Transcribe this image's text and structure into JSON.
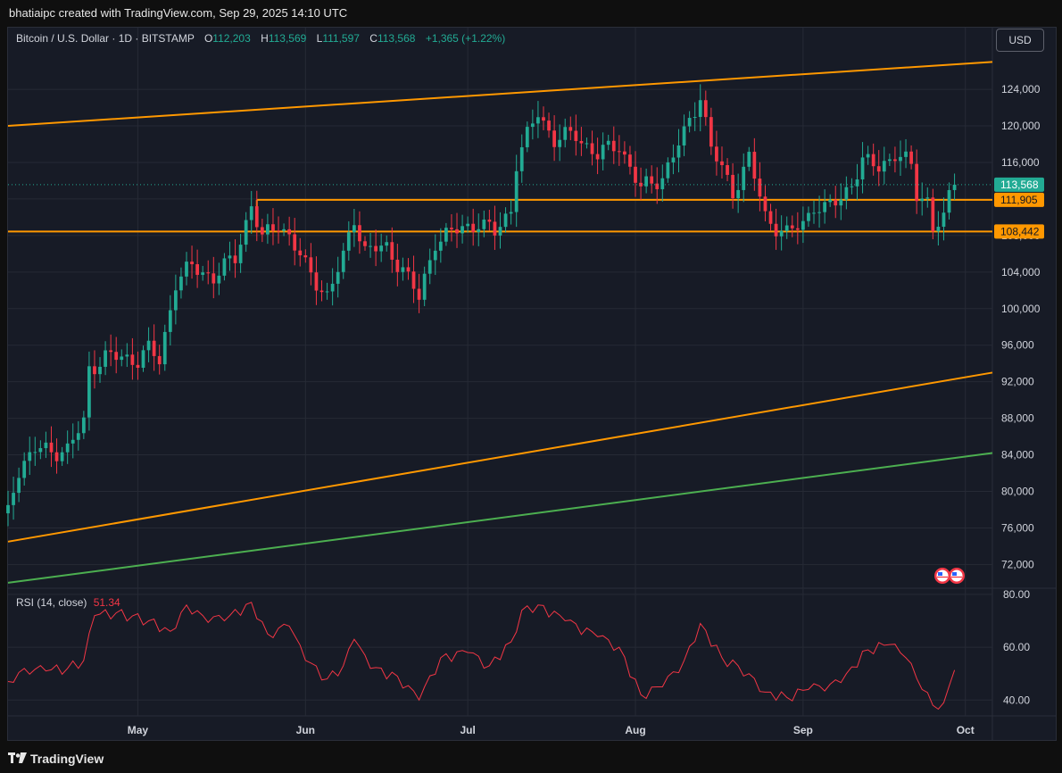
{
  "header": {
    "attribution": "bhatiaipc created with TradingView.com, Sep 29, 2025 14:10 UTC"
  },
  "legend": {
    "symbol": "Bitcoin / U.S. Dollar · 1D · BITSTAMP",
    "o_label": "O",
    "o_value": "112,203",
    "h_label": "H",
    "h_value": "113,569",
    "l_label": "L",
    "l_value": "111,597",
    "c_label": "C",
    "c_value": "113,568",
    "change": "+1,365 (+1.22%)"
  },
  "currency_button": "USD",
  "rsi_legend": {
    "label": "RSI (14, close)",
    "value": "51.34"
  },
  "footer": {
    "brand": "TradingView"
  },
  "colors": {
    "up": "#22ab94",
    "down": "#f23645",
    "level": "#ff9800",
    "trend_green": "#4caf50",
    "rsi": "#f23645",
    "bg": "#171b26",
    "grid": "#262a35"
  },
  "chart_data": {
    "type": "candlestick",
    "title": "Bitcoin / U.S. Dollar · 1D · BITSTAMP",
    "price_axis": {
      "ylim": [
        69500,
        128500
      ],
      "ticks": [
        72000,
        76000,
        80000,
        84000,
        88000,
        92000,
        96000,
        100000,
        104000,
        108000,
        112000,
        116000,
        120000,
        124000
      ],
      "tick_labels": [
        "72,000",
        "76,000",
        "80,000",
        "84,000",
        "88,000",
        "92,000",
        "96,000",
        "100,000",
        "104,000",
        "108,000",
        "112,000",
        "116,000",
        "120,000",
        "124,000"
      ]
    },
    "x_axis": {
      "start": "2025-04-07",
      "end": "2025-10-06",
      "ticks": [
        "2025-05-01",
        "2025-06-01",
        "2025-07-01",
        "2025-08-01",
        "2025-09-01",
        "2025-10-01"
      ],
      "tick_labels": [
        "May",
        "Jun",
        "Jul",
        "Aug",
        "Sep",
        "Oct"
      ]
    },
    "close_path": [
      [
        "2025-04-07",
        78500
      ],
      [
        "2025-04-09",
        82500
      ],
      [
        "2025-04-12",
        84500
      ],
      [
        "2025-04-18",
        84500
      ],
      [
        "2025-04-21",
        87500
      ],
      [
        "2025-04-22",
        93500
      ],
      [
        "2025-04-25",
        94700
      ],
      [
        "2025-05-01",
        94500
      ],
      [
        "2025-05-03",
        95500
      ],
      [
        "2025-05-05",
        94200
      ],
      [
        "2025-05-08",
        103000
      ],
      [
        "2025-05-11",
        104500
      ],
      [
        "2025-05-15",
        103500
      ],
      [
        "2025-05-19",
        105500
      ],
      [
        "2025-05-22",
        111500
      ],
      [
        "2025-05-24",
        107500
      ],
      [
        "2025-05-27",
        109400
      ],
      [
        "2025-05-29",
        108000
      ],
      [
        "2025-06-01",
        104500
      ],
      [
        "2025-06-05",
        101500
      ],
      [
        "2025-06-08",
        105500
      ],
      [
        "2025-06-10",
        110000
      ],
      [
        "2025-06-12",
        106500
      ],
      [
        "2025-06-16",
        106500
      ],
      [
        "2025-06-19",
        104500
      ],
      [
        "2025-06-22",
        101000
      ],
      [
        "2025-06-25",
        107500
      ],
      [
        "2025-06-29",
        108500
      ],
      [
        "2025-07-03",
        109500
      ],
      [
        "2025-07-06",
        108200
      ],
      [
        "2025-07-09",
        111000
      ],
      [
        "2025-07-10",
        116000
      ],
      [
        "2025-07-14",
        121500
      ],
      [
        "2025-07-17",
        118500
      ],
      [
        "2025-07-21",
        119000
      ],
      [
        "2025-07-25",
        116800
      ],
      [
        "2025-07-29",
        118000
      ],
      [
        "2025-08-02",
        113000
      ],
      [
        "2025-08-06",
        114500
      ],
      [
        "2025-08-10",
        119000
      ],
      [
        "2025-08-13",
        123500
      ],
      [
        "2025-08-15",
        117500
      ],
      [
        "2025-08-19",
        112800
      ],
      [
        "2025-08-22",
        116500
      ],
      [
        "2025-08-25",
        110000
      ],
      [
        "2025-08-29",
        108200
      ],
      [
        "2025-09-01",
        109200
      ],
      [
        "2025-09-03",
        111500
      ],
      [
        "2025-09-05",
        110800
      ],
      [
        "2025-09-08",
        112000
      ],
      [
        "2025-09-12",
        116000
      ],
      [
        "2025-09-15",
        115500
      ],
      [
        "2025-09-18",
        117000
      ],
      [
        "2025-09-21",
        115500
      ],
      [
        "2025-09-22",
        112500
      ],
      [
        "2025-09-24",
        112000
      ],
      [
        "2025-09-25",
        109000
      ],
      [
        "2025-09-27",
        109500
      ],
      [
        "2025-09-28",
        112200
      ],
      [
        "2025-09-29",
        113568
      ]
    ],
    "horizontal_levels": [
      {
        "value": 111905,
        "label": "111,905",
        "from": "2025-05-23"
      },
      {
        "value": 108442,
        "label": "108,442",
        "from": "2025-04-07"
      }
    ],
    "last_price": {
      "value": 113568,
      "label": "113,568"
    },
    "trendlines": [
      {
        "color": "orange",
        "from": [
          "2025-04-07",
          120000
        ],
        "to": [
          "2025-10-06",
          127000
        ]
      },
      {
        "color": "orange",
        "from": [
          "2025-04-07",
          74500
        ],
        "to": [
          "2025-10-06",
          93000
        ]
      },
      {
        "color": "green",
        "from": [
          "2025-04-07",
          70000
        ],
        "to": [
          "2025-10-06",
          84200
        ]
      }
    ],
    "rsi": {
      "name": "RSI (14, close)",
      "last": 51.34,
      "ylim": [
        34,
        82
      ],
      "ticks": [
        40,
        60,
        80
      ],
      "tick_labels": [
        "40.00",
        "60.00",
        "80.00"
      ],
      "series": [
        [
          "2025-04-07",
          47
        ],
        [
          "2025-04-10",
          52
        ],
        [
          "2025-04-14",
          51
        ],
        [
          "2025-04-18",
          52
        ],
        [
          "2025-04-21",
          55
        ],
        [
          "2025-04-23",
          72
        ],
        [
          "2025-04-27",
          73
        ],
        [
          "2025-05-03",
          70
        ],
        [
          "2025-05-07",
          66
        ],
        [
          "2025-05-10",
          76
        ],
        [
          "2025-05-13",
          72
        ],
        [
          "2025-05-17",
          70
        ],
        [
          "2025-05-22",
          77
        ],
        [
          "2025-05-25",
          65
        ],
        [
          "2025-05-29",
          68
        ],
        [
          "2025-06-01",
          55
        ],
        [
          "2025-06-05",
          48
        ],
        [
          "2025-06-08",
          53
        ],
        [
          "2025-06-10",
          63
        ],
        [
          "2025-06-13",
          52
        ],
        [
          "2025-06-18",
          49
        ],
        [
          "2025-06-22",
          40
        ],
        [
          "2025-06-26",
          56
        ],
        [
          "2025-07-01",
          58
        ],
        [
          "2025-07-05",
          53
        ],
        [
          "2025-07-09",
          62
        ],
        [
          "2025-07-11",
          74
        ],
        [
          "2025-07-14",
          76
        ],
        [
          "2025-07-19",
          70
        ],
        [
          "2025-07-25",
          64
        ],
        [
          "2025-07-29",
          60
        ],
        [
          "2025-08-02",
          42
        ],
        [
          "2025-08-06",
          45
        ],
        [
          "2025-08-10",
          55
        ],
        [
          "2025-08-13",
          69
        ],
        [
          "2025-08-17",
          56
        ],
        [
          "2025-08-22",
          50
        ],
        [
          "2025-08-25",
          43
        ],
        [
          "2025-08-29",
          41
        ],
        [
          "2025-09-02",
          44
        ],
        [
          "2025-09-06",
          46
        ],
        [
          "2025-09-09",
          50
        ],
        [
          "2025-09-13",
          59
        ],
        [
          "2025-09-17",
          61
        ],
        [
          "2025-09-20",
          56
        ],
        [
          "2025-09-23",
          44
        ],
        [
          "2025-09-25",
          38
        ],
        [
          "2025-09-27",
          39
        ],
        [
          "2025-09-29",
          51.34
        ]
      ]
    }
  }
}
